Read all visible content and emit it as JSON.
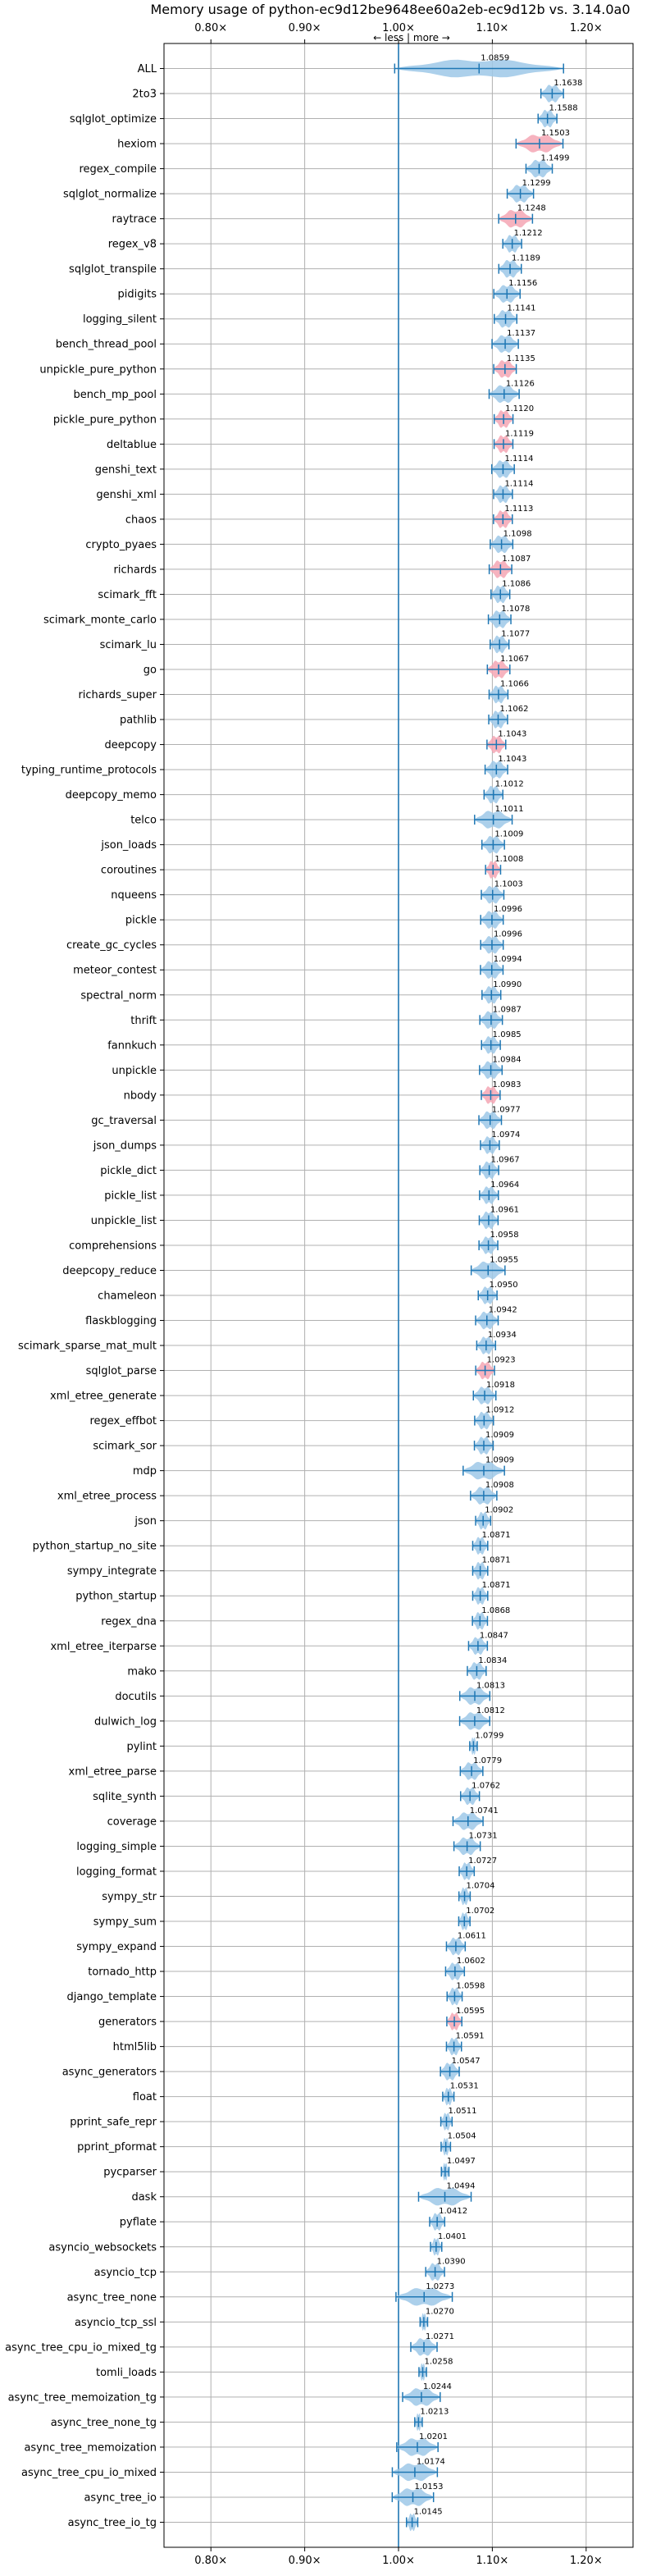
{
  "chart_data": {
    "type": "violin",
    "title": "Memory usage of python-ec9d12be9648ee60a2eb-ec9d12b vs. 3.14.0a0",
    "direction_hint": "← less  |  more →",
    "xlim": [
      0.75,
      1.25
    ],
    "baseline": 1.0,
    "x_ticks": [
      0.8,
      0.9,
      1.0,
      1.1,
      1.2
    ],
    "x_tick_labels": [
      "0.80×",
      "0.90×",
      "1.00×",
      "1.10×",
      "1.20×"
    ],
    "grid": true,
    "colors": {
      "violin": "#9ec8e8",
      "violin_significant": "#f4a6b4",
      "whisker": "#1f77b4",
      "baseline": "#1f77b4",
      "grid": "#b0b0b0"
    },
    "benchmarks": [
      {
        "name": "ALL",
        "value": 1.0859,
        "label": "1.0859",
        "spread": 0.09,
        "significant": false
      },
      {
        "name": "2to3",
        "value": 1.1638,
        "label": "1.1638",
        "spread": 0.012,
        "significant": false
      },
      {
        "name": "sqlglot_optimize",
        "value": 1.1588,
        "label": "1.1588",
        "spread": 0.01,
        "significant": false
      },
      {
        "name": "hexiom",
        "value": 1.1503,
        "label": "1.1503",
        "spread": 0.025,
        "significant": true
      },
      {
        "name": "regex_compile",
        "value": 1.1499,
        "label": "1.1499",
        "spread": 0.014,
        "significant": false
      },
      {
        "name": "sqlglot_normalize",
        "value": 1.1299,
        "label": "1.1299",
        "spread": 0.014,
        "significant": false
      },
      {
        "name": "raytrace",
        "value": 1.1248,
        "label": "1.1248",
        "spread": 0.018,
        "significant": true
      },
      {
        "name": "regex_v8",
        "value": 1.1212,
        "label": "1.1212",
        "spread": 0.01,
        "significant": false
      },
      {
        "name": "sqlglot_transpile",
        "value": 1.1189,
        "label": "1.1189",
        "spread": 0.012,
        "significant": false
      },
      {
        "name": "pidigits",
        "value": 1.1156,
        "label": "1.1156",
        "spread": 0.014,
        "significant": false
      },
      {
        "name": "logging_silent",
        "value": 1.1141,
        "label": "1.1141",
        "spread": 0.012,
        "significant": false
      },
      {
        "name": "bench_thread_pool",
        "value": 1.1137,
        "label": "1.1137",
        "spread": 0.014,
        "significant": false
      },
      {
        "name": "unpickle_pure_python",
        "value": 1.1135,
        "label": "1.1135",
        "spread": 0.012,
        "significant": true
      },
      {
        "name": "bench_mp_pool",
        "value": 1.1126,
        "label": "1.1126",
        "spread": 0.016,
        "significant": false
      },
      {
        "name": "pickle_pure_python",
        "value": 1.112,
        "label": "1.1120",
        "spread": 0.01,
        "significant": true
      },
      {
        "name": "deltablue",
        "value": 1.1119,
        "label": "1.1119",
        "spread": 0.01,
        "significant": true
      },
      {
        "name": "genshi_text",
        "value": 1.1114,
        "label": "1.1114",
        "spread": 0.012,
        "significant": false
      },
      {
        "name": "genshi_xml",
        "value": 1.1114,
        "label": "1.1114",
        "spread": 0.01,
        "significant": false
      },
      {
        "name": "chaos",
        "value": 1.1113,
        "label": "1.1113",
        "spread": 0.01,
        "significant": true
      },
      {
        "name": "crypto_pyaes",
        "value": 1.1098,
        "label": "1.1098",
        "spread": 0.012,
        "significant": false
      },
      {
        "name": "richards",
        "value": 1.1087,
        "label": "1.1087",
        "spread": 0.012,
        "significant": true
      },
      {
        "name": "scimark_fft",
        "value": 1.1086,
        "label": "1.1086",
        "spread": 0.01,
        "significant": false
      },
      {
        "name": "scimark_monte_carlo",
        "value": 1.1078,
        "label": "1.1078",
        "spread": 0.012,
        "significant": false
      },
      {
        "name": "scimark_lu",
        "value": 1.1077,
        "label": "1.1077",
        "spread": 0.01,
        "significant": false
      },
      {
        "name": "go",
        "value": 1.1067,
        "label": "1.1067",
        "spread": 0.012,
        "significant": true
      },
      {
        "name": "richards_super",
        "value": 1.1066,
        "label": "1.1066",
        "spread": 0.01,
        "significant": false
      },
      {
        "name": "pathlib",
        "value": 1.1062,
        "label": "1.1062",
        "spread": 0.01,
        "significant": false
      },
      {
        "name": "deepcopy",
        "value": 1.1043,
        "label": "1.1043",
        "spread": 0.01,
        "significant": true
      },
      {
        "name": "typing_runtime_protocols",
        "value": 1.1043,
        "label": "1.1043",
        "spread": 0.012,
        "significant": false
      },
      {
        "name": "deepcopy_memo",
        "value": 1.1012,
        "label": "1.1012",
        "spread": 0.01,
        "significant": false
      },
      {
        "name": "telco",
        "value": 1.1011,
        "label": "1.1011",
        "spread": 0.02,
        "significant": false
      },
      {
        "name": "json_loads",
        "value": 1.1009,
        "label": "1.1009",
        "spread": 0.012,
        "significant": false
      },
      {
        "name": "coroutines",
        "value": 1.1008,
        "label": "1.1008",
        "spread": 0.008,
        "significant": true
      },
      {
        "name": "nqueens",
        "value": 1.1003,
        "label": "1.1003",
        "spread": 0.012,
        "significant": false
      },
      {
        "name": "pickle",
        "value": 1.0996,
        "label": "1.0996",
        "spread": 0.012,
        "significant": false
      },
      {
        "name": "create_gc_cycles",
        "value": 1.0996,
        "label": "1.0996",
        "spread": 0.012,
        "significant": false
      },
      {
        "name": "meteor_contest",
        "value": 1.0994,
        "label": "1.0994",
        "spread": 0.012,
        "significant": false
      },
      {
        "name": "spectral_norm",
        "value": 1.099,
        "label": "1.0990",
        "spread": 0.01,
        "significant": false
      },
      {
        "name": "thrift",
        "value": 1.0987,
        "label": "1.0987",
        "spread": 0.012,
        "significant": false
      },
      {
        "name": "fannkuch",
        "value": 1.0985,
        "label": "1.0985",
        "spread": 0.01,
        "significant": false
      },
      {
        "name": "unpickle",
        "value": 1.0984,
        "label": "1.0984",
        "spread": 0.012,
        "significant": false
      },
      {
        "name": "nbody",
        "value": 1.0983,
        "label": "1.0983",
        "spread": 0.01,
        "significant": true
      },
      {
        "name": "gc_traversal",
        "value": 1.0977,
        "label": "1.0977",
        "spread": 0.012,
        "significant": false
      },
      {
        "name": "json_dumps",
        "value": 1.0974,
        "label": "1.0974",
        "spread": 0.01,
        "significant": false
      },
      {
        "name": "pickle_dict",
        "value": 1.0967,
        "label": "1.0967",
        "spread": 0.01,
        "significant": false
      },
      {
        "name": "pickle_list",
        "value": 1.0964,
        "label": "1.0964",
        "spread": 0.01,
        "significant": false
      },
      {
        "name": "unpickle_list",
        "value": 1.0961,
        "label": "1.0961",
        "spread": 0.01,
        "significant": false
      },
      {
        "name": "comprehensions",
        "value": 1.0958,
        "label": "1.0958",
        "spread": 0.01,
        "significant": false
      },
      {
        "name": "deepcopy_reduce",
        "value": 1.0955,
        "label": "1.0955",
        "spread": 0.018,
        "significant": false
      },
      {
        "name": "chameleon",
        "value": 1.095,
        "label": "1.0950",
        "spread": 0.01,
        "significant": false
      },
      {
        "name": "flaskblogging",
        "value": 1.0942,
        "label": "1.0942",
        "spread": 0.012,
        "significant": false
      },
      {
        "name": "scimark_sparse_mat_mult",
        "value": 1.0934,
        "label": "1.0934",
        "spread": 0.01,
        "significant": false
      },
      {
        "name": "sqlglot_parse",
        "value": 1.0923,
        "label": "1.0923",
        "spread": 0.01,
        "significant": true
      },
      {
        "name": "xml_etree_generate",
        "value": 1.0918,
        "label": "1.0918",
        "spread": 0.012,
        "significant": false
      },
      {
        "name": "regex_effbot",
        "value": 1.0912,
        "label": "1.0912",
        "spread": 0.01,
        "significant": false
      },
      {
        "name": "scimark_sor",
        "value": 1.0909,
        "label": "1.0909",
        "spread": 0.01,
        "significant": false
      },
      {
        "name": "mdp",
        "value": 1.0909,
        "label": "1.0909",
        "spread": 0.022,
        "significant": false
      },
      {
        "name": "xml_etree_process",
        "value": 1.0908,
        "label": "1.0908",
        "spread": 0.014,
        "significant": false
      },
      {
        "name": "json",
        "value": 1.0902,
        "label": "1.0902",
        "spread": 0.008,
        "significant": false
      },
      {
        "name": "python_startup_no_site",
        "value": 1.0871,
        "label": "1.0871",
        "spread": 0.008,
        "significant": false
      },
      {
        "name": "sympy_integrate",
        "value": 1.0871,
        "label": "1.0871",
        "spread": 0.008,
        "significant": false
      },
      {
        "name": "python_startup",
        "value": 1.0871,
        "label": "1.0871",
        "spread": 0.008,
        "significant": false
      },
      {
        "name": "regex_dna",
        "value": 1.0868,
        "label": "1.0868",
        "spread": 0.008,
        "significant": false
      },
      {
        "name": "xml_etree_iterparse",
        "value": 1.0847,
        "label": "1.0847",
        "spread": 0.01,
        "significant": false
      },
      {
        "name": "mako",
        "value": 1.0834,
        "label": "1.0834",
        "spread": 0.01,
        "significant": false
      },
      {
        "name": "docutils",
        "value": 1.0813,
        "label": "1.0813",
        "spread": 0.016,
        "significant": false
      },
      {
        "name": "dulwich_log",
        "value": 1.0812,
        "label": "1.0812",
        "spread": 0.016,
        "significant": false
      },
      {
        "name": "pylint",
        "value": 1.0799,
        "label": "1.0799",
        "spread": 0.004,
        "significant": false
      },
      {
        "name": "xml_etree_parse",
        "value": 1.0779,
        "label": "1.0779",
        "spread": 0.012,
        "significant": false
      },
      {
        "name": "sqlite_synth",
        "value": 1.0762,
        "label": "1.0762",
        "spread": 0.01,
        "significant": false
      },
      {
        "name": "coverage",
        "value": 1.0741,
        "label": "1.0741",
        "spread": 0.016,
        "significant": false
      },
      {
        "name": "logging_simple",
        "value": 1.0731,
        "label": "1.0731",
        "spread": 0.014,
        "significant": false
      },
      {
        "name": "logging_format",
        "value": 1.0727,
        "label": "1.0727",
        "spread": 0.008,
        "significant": false
      },
      {
        "name": "sympy_str",
        "value": 1.0704,
        "label": "1.0704",
        "spread": 0.006,
        "significant": false
      },
      {
        "name": "sympy_sum",
        "value": 1.0702,
        "label": "1.0702",
        "spread": 0.006,
        "significant": false
      },
      {
        "name": "sympy_expand",
        "value": 1.0611,
        "label": "1.0611",
        "spread": 0.01,
        "significant": false
      },
      {
        "name": "tornado_http",
        "value": 1.0602,
        "label": "1.0602",
        "spread": 0.01,
        "significant": false
      },
      {
        "name": "django_template",
        "value": 1.0598,
        "label": "1.0598",
        "spread": 0.008,
        "significant": false
      },
      {
        "name": "generators",
        "value": 1.0595,
        "label": "1.0595",
        "spread": 0.008,
        "significant": true
      },
      {
        "name": "html5lib",
        "value": 1.0591,
        "label": "1.0591",
        "spread": 0.008,
        "significant": false
      },
      {
        "name": "async_generators",
        "value": 1.0547,
        "label": "1.0547",
        "spread": 0.01,
        "significant": false
      },
      {
        "name": "float",
        "value": 1.0531,
        "label": "1.0531",
        "spread": 0.006,
        "significant": false
      },
      {
        "name": "pprint_safe_repr",
        "value": 1.0511,
        "label": "1.0511",
        "spread": 0.006,
        "significant": false
      },
      {
        "name": "pprint_pformat",
        "value": 1.0504,
        "label": "1.0504",
        "spread": 0.005,
        "significant": false
      },
      {
        "name": "pycparser",
        "value": 1.0497,
        "label": "1.0497",
        "spread": 0.004,
        "significant": false
      },
      {
        "name": "dask",
        "value": 1.0494,
        "label": "1.0494",
        "spread": 0.028,
        "significant": false
      },
      {
        "name": "pyflate",
        "value": 1.0412,
        "label": "1.0412",
        "spread": 0.008,
        "significant": false
      },
      {
        "name": "asyncio_websockets",
        "value": 1.0401,
        "label": "1.0401",
        "spread": 0.006,
        "significant": false
      },
      {
        "name": "asyncio_tcp",
        "value": 1.039,
        "label": "1.0390",
        "spread": 0.01,
        "significant": false
      },
      {
        "name": "async_tree_none",
        "value": 1.0273,
        "label": "1.0273",
        "spread": 0.03,
        "significant": false
      },
      {
        "name": "asyncio_tcp_ssl",
        "value": 1.027,
        "label": "1.0270",
        "spread": 0.004,
        "significant": false
      },
      {
        "name": "async_tree_cpu_io_mixed_tg",
        "value": 1.0271,
        "label": "1.0271",
        "spread": 0.014,
        "significant": false
      },
      {
        "name": "tomli_loads",
        "value": 1.0258,
        "label": "1.0258",
        "spread": 0.004,
        "significant": false
      },
      {
        "name": "async_tree_memoization_tg",
        "value": 1.0244,
        "label": "1.0244",
        "spread": 0.02,
        "significant": false
      },
      {
        "name": "async_tree_none_tg",
        "value": 1.0213,
        "label": "1.0213",
        "spread": 0.004,
        "significant": false
      },
      {
        "name": "async_tree_memoization",
        "value": 1.0201,
        "label": "1.0201",
        "spread": 0.022,
        "significant": false
      },
      {
        "name": "async_tree_cpu_io_mixed",
        "value": 1.0174,
        "label": "1.0174",
        "spread": 0.024,
        "significant": false
      },
      {
        "name": "async_tree_io",
        "value": 1.0153,
        "label": "1.0153",
        "spread": 0.022,
        "significant": false
      },
      {
        "name": "async_tree_io_tg",
        "value": 1.0145,
        "label": "1.0145",
        "spread": 0.006,
        "significant": false
      }
    ]
  }
}
